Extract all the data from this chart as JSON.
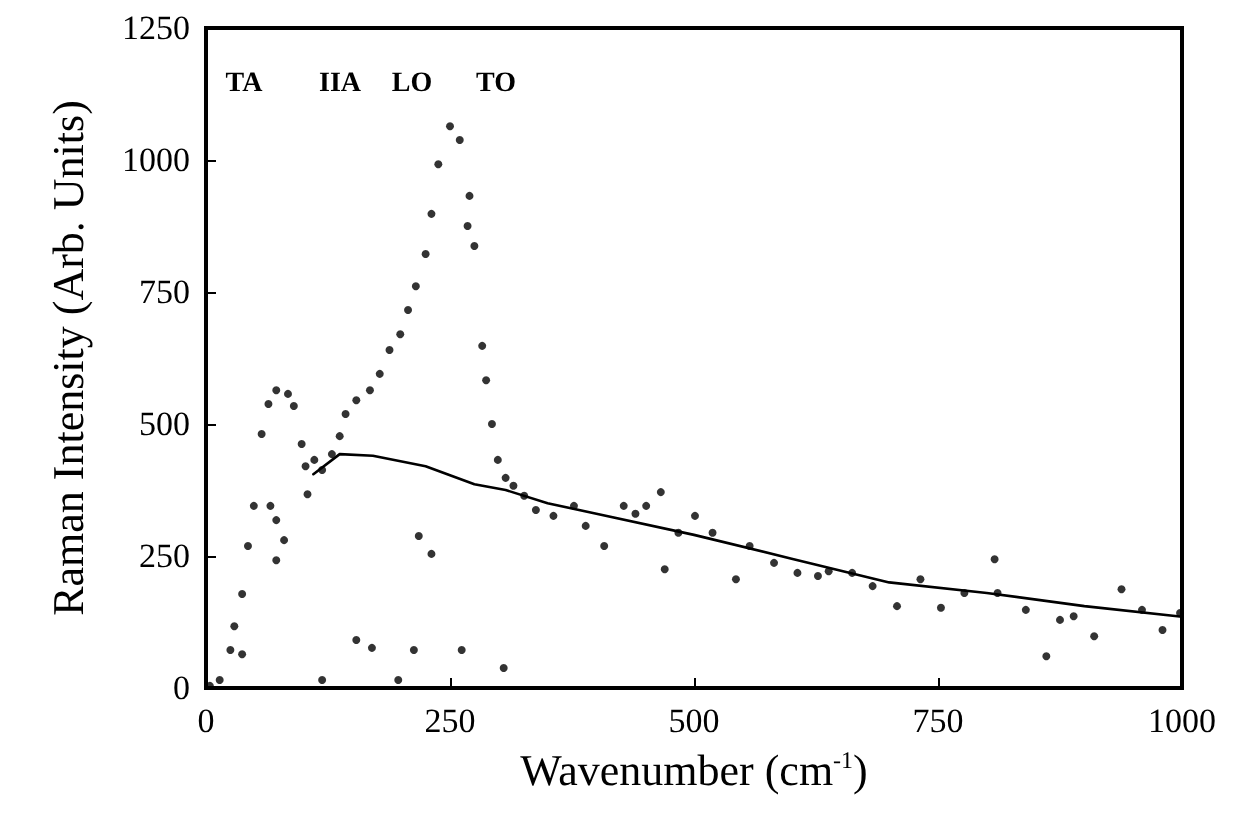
{
  "chart_data": {
    "type": "scatter",
    "xlabel": "Wavenumber (cm$^{-1}$)",
    "ylabel": "Raman Intensity (Arb. Units)",
    "xlim": [
      0,
      1000
    ],
    "xticks": [
      0,
      250,
      500,
      750,
      1000
    ],
    "ylim": [
      0,
      1250
    ],
    "yticks": [
      0,
      250,
      500,
      750,
      1000,
      1250
    ],
    "grid": false,
    "annotations": [
      "TA",
      "IIA",
      "LO",
      "TO"
    ],
    "series": [
      {
        "color": "#000000",
        "marker": "circle",
        "x": [
          4,
          14,
          25,
          29,
          37,
          43,
          49,
          57,
          64,
          72,
          84,
          90,
          98,
          102,
          104,
          111,
          119,
          129,
          137,
          143,
          154,
          168,
          178,
          188,
          199,
          207,
          215,
          225,
          231,
          238,
          250,
          260,
          268,
          270,
          275,
          283,
          287,
          293,
          299,
          307,
          315,
          326,
          338,
          356,
          377,
          389,
          408,
          428,
          440,
          451,
          466,
          470,
          484,
          501,
          519,
          543,
          557,
          582,
          606,
          627,
          638,
          662,
          683,
          708,
          732,
          753,
          777,
          808,
          811,
          840,
          875,
          889,
          910,
          938,
          959,
          980,
          998
        ],
        "values": [
          4,
          15,
          72,
          117,
          178,
          269,
          345,
          481,
          538,
          564,
          557,
          534,
          462,
          420,
          367,
          432,
          413,
          443,
          477,
          519,
          545,
          564,
          595,
          640,
          670,
          716,
          761,
          822,
          898,
          992,
          1064,
          1038,
          875,
          932,
          837,
          648,
          583,
          500,
          432,
          398,
          383,
          364,
          337,
          326,
          345,
          307,
          269,
          345,
          330,
          345,
          371,
          225,
          294,
          326,
          294,
          206,
          269,
          237,
          218,
          212,
          221,
          218,
          193,
          155,
          206,
          152,
          180,
          244,
          180,
          148,
          129,
          136,
          98,
          187,
          148,
          110,
          142
        ]
      },
      {
        "color": "#000000",
        "marker": "circle",
        "x": [
          37,
          66,
          72,
          72,
          80,
          119,
          154,
          170,
          197,
          213,
          218,
          231,
          262,
          305,
          861
        ],
        "values": [
          64,
          345,
          318,
          242,
          280,
          15,
          91,
          76,
          15,
          72,
          288,
          254,
          72,
          38,
          60
        ]
      },
      {
        "type": "line",
        "color": "#000000",
        "x": [
          110,
          137,
          171,
          225,
          275,
          307,
          350,
          400,
          500,
          600,
          700,
          800,
          900,
          1000
        ],
        "values": [
          405,
          443,
          440,
          420,
          386,
          375,
          350,
          330,
          290,
          245,
          200,
          180,
          155,
          135
        ]
      }
    ]
  }
}
